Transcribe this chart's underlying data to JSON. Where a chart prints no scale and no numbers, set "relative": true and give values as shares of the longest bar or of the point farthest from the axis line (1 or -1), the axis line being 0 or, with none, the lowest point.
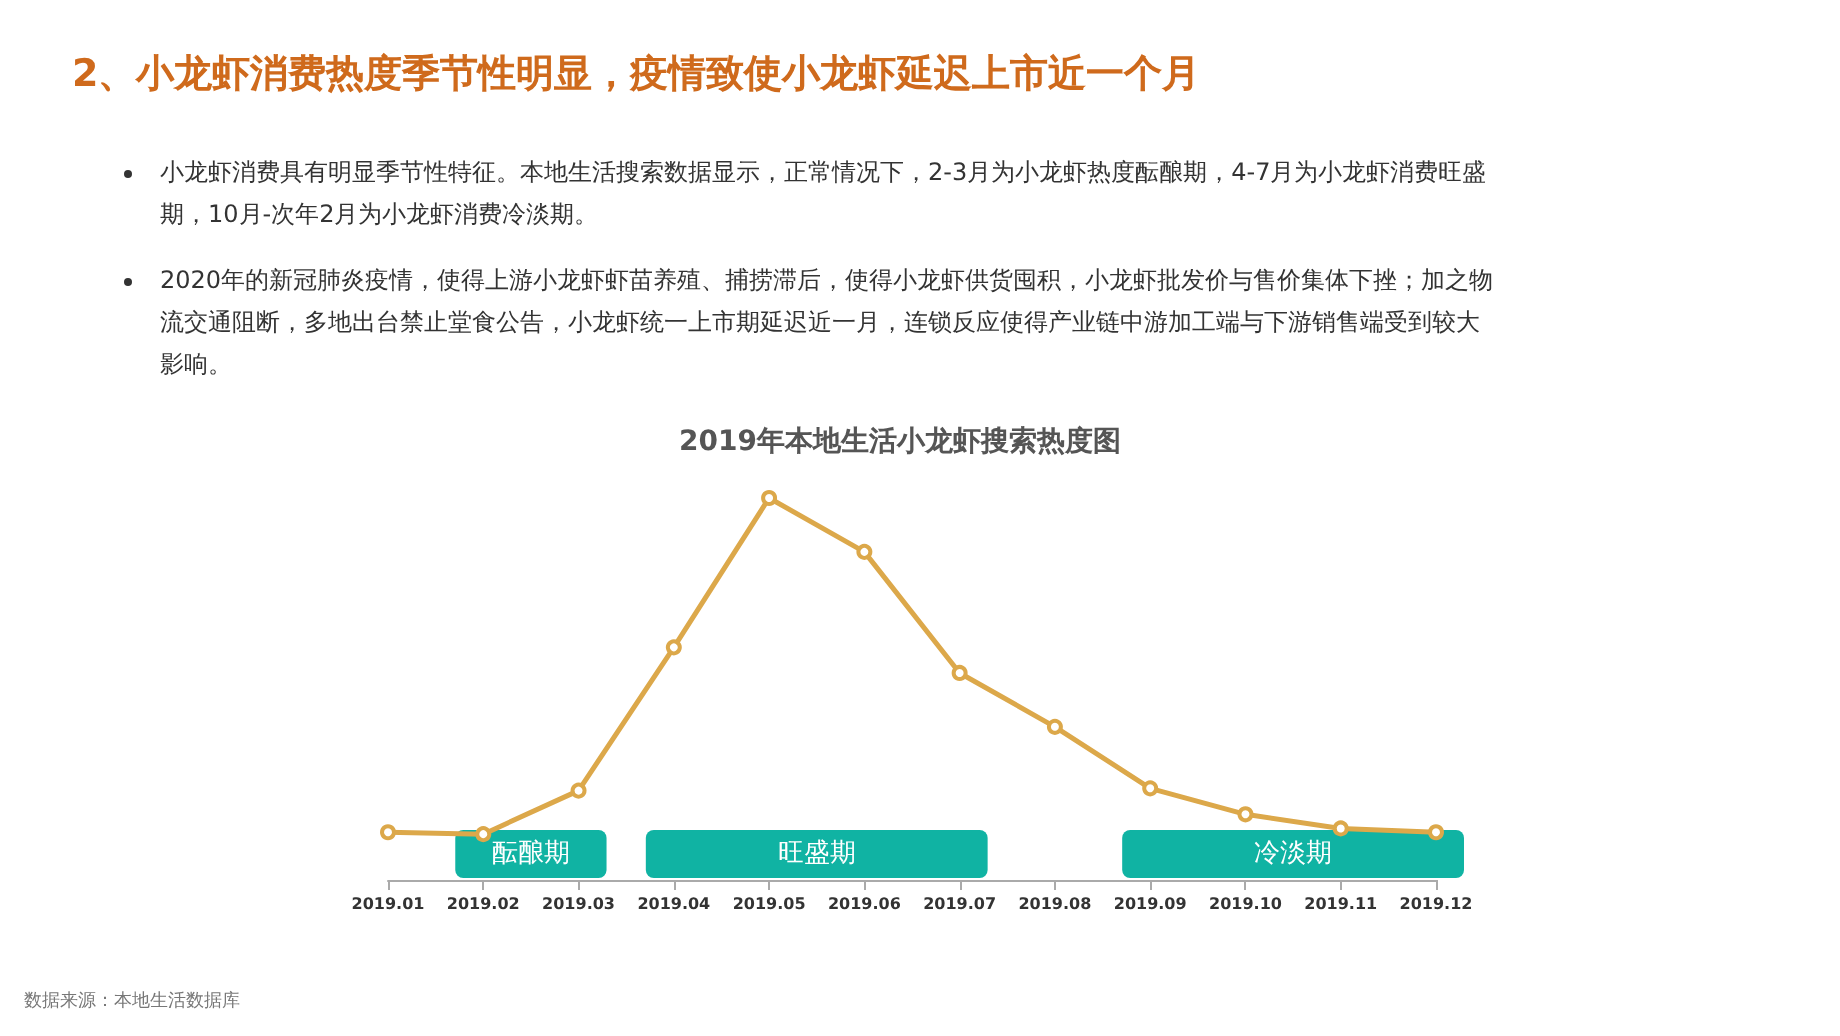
{
  "chart_data": {
    "type": "line",
    "title": "2、小龙虾消费热度季节性明显，疫情致使小龙虾延迟上市近一个月",
    "subtitle": "2019年本地生活小龙虾搜索热度图",
    "categories": [
      "2019.01",
      "2019.02",
      "2019.03",
      "2019.04",
      "2019.05",
      "2019.06",
      "2019.07",
      "2019.08",
      "2019.09",
      "2019.10",
      "2019.11",
      "2019.12"
    ],
    "series": [
      {
        "color": "#dca84a",
        "values": [
          0.125,
          0.12,
          0.234,
          0.609,
          1,
          0.859,
          0.542,
          0.401,
          0.24,
          0.172,
          0.135,
          0.125
        ]
      }
    ],
    "relative": true,
    "marker": "circle",
    "line_style": "solid",
    "grid": false,
    "bands": [
      {
        "axis": "x",
        "from": "2019.02",
        "to": "2019.03",
        "label": "酝酿期",
        "color": "#10b3a3"
      },
      {
        "axis": "x",
        "from": "2019.04",
        "to": "2019.07",
        "label": "旺盛期",
        "color": "#10b3a3"
      },
      {
        "axis": "x",
        "from": "2019.09",
        "to": "2019.12",
        "label": "冷淡期",
        "color": "#10b3a3"
      }
    ],
    "annotations": [
      "小龙虾消费具有明显季节性特征。本地生活搜索数据显示，正常情况下，2-3月为小龙虾热度酝酿期，4-7月为小龙虾消费旺盛期，10月-次年2月为小龙虾消费冷淡期。",
      "2020年的新冠肺炎疫情，使得上游小龙虾虾苗养殖、捕捞滞后，使得小龙虾供货囤积，小龙虾批发价与售价集体下挫；加之物流交通阻断，多地出台禁止堂食公告，小龙虾统一上市期延迟近一月，连锁反应使得产业链中游加工端与下游销售端受到较大影响。",
      "数据来源：本地生活数据库"
    ]
  }
}
